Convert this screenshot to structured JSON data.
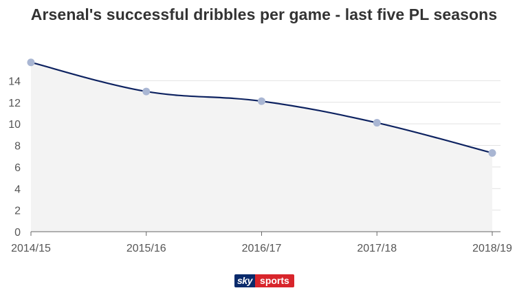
{
  "chart_data": {
    "type": "line",
    "title": "Arsenal's successful dribbles per game - last five PL seasons",
    "xlabel": "",
    "ylabel": "",
    "categories": [
      "2014/15",
      "2015/16",
      "2016/17",
      "2017/18",
      "2018/19"
    ],
    "series": [
      {
        "values": [
          15.7,
          13.0,
          12.1,
          10.1,
          7.3
        ]
      }
    ],
    "ylim": [
      0,
      16
    ],
    "yticks": [
      0,
      2,
      4,
      6,
      8,
      10,
      12,
      14
    ],
    "grid": true,
    "area_fill": true,
    "colors": {
      "line": "#0d2260",
      "marker": "#a9b6d3",
      "area": "#f3f3f3",
      "grid": "#e2e2e2"
    }
  },
  "branding": {
    "logo_sky": "sky",
    "logo_sports": "sports"
  }
}
